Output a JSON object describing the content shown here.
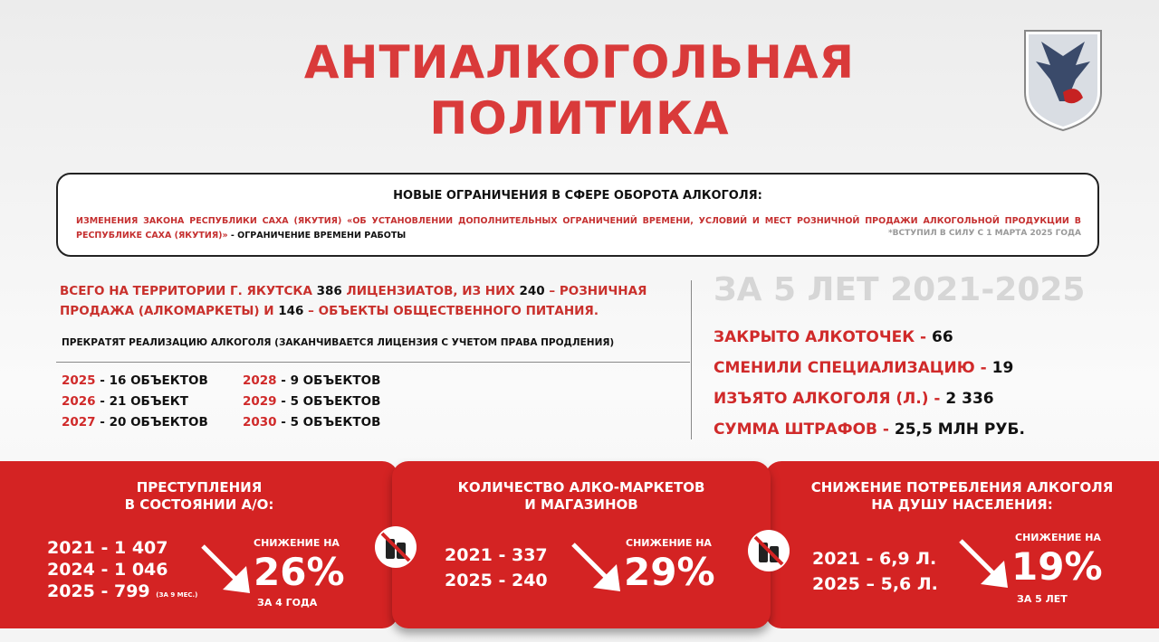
{
  "title": {
    "line1": "АНТИАЛКОГОЛЬНАЯ",
    "line2": "ПОЛИТИКА"
  },
  "crest": {
    "icon": "yakutsk-coat-of-arms"
  },
  "restrictions": {
    "heading": "НОВЫЕ ОГРАНИЧЕНИЯ В СФЕРЕ ОБОРОТА АЛКОГОЛЯ:",
    "law_text": "ИЗМЕНЕНИЯ ЗАКОНА РЕСПУБЛИКИ САХА (ЯКУТИЯ)  «ОБ УСТАНОВЛЕНИИ ДОПОЛНИТЕЛЬНЫХ ОГРАНИЧЕНИЙ ВРЕМЕНИ, УСЛОВИЙ И МЕСТ РОЗНИЧНОЙ ПРОДАЖИ АЛКОГОЛЬНОЙ ПРОДУКЦИИ В РЕСПУБЛИКЕ САХА (ЯКУТИЯ)»",
    "law_suffix": " - ОГРАНИЧЕНИЕ ВРЕМЕНИ РАБОТЫ",
    "note": "*ВСТУПИЛ В СИЛУ С 1 МАРТА 2025 ГОДА"
  },
  "licensees": {
    "t1": "ВСЕГО НА ТЕРРИТОРИИ Г. ЯКУТСКА ",
    "n1": "386",
    "t2": " ЛИЦЕНЗИАТОВ, ИЗ НИХ ",
    "n2": "240",
    "t3": " – РОЗНИЧНАЯ ПРОДАЖА (АЛКОМАРКЕТЫ) И ",
    "n3": "146",
    "t4": " – ОБЪЕКТЫ ОБЩЕСТВЕННОГО ПИТАНИЯ."
  },
  "stop_heading": "ПРЕКРАТЯТ РЕАЛИЗАЦИЮ АЛКОГОЛЯ (ЗАКАНЧИВАЕТСЯ ЛИЦЕНЗИЯ С УЧЕТОМ ПРАВА ПРОДЛЕНИЯ)",
  "schedule": [
    {
      "year": "2025",
      "value": "16 ОБЪЕКТОВ"
    },
    {
      "year": "2026",
      "value": "21 ОБЪЕКТ"
    },
    {
      "year": "2027",
      "value": "20 ОБЪЕКТОВ"
    },
    {
      "year": "2028",
      "value": "9 ОБЪЕКТОВ"
    },
    {
      "year": "2029",
      "value": "5 ОБЪЕКТОВ"
    },
    {
      "year": "2030",
      "value": "5 ОБЪЕКТОВ"
    }
  ],
  "period": "ЗА 5 ЛЕТ 2021-2025",
  "stats": [
    {
      "label": "ЗАКРЫТО АЛКОТОЧЕК",
      "value": "66"
    },
    {
      "label": "СМЕНИЛИ СПЕЦИАЛИЗАЦИЮ",
      "value": "19"
    },
    {
      "label": "ИЗЪЯТО АЛКОГОЛЯ (Л.)",
      "value": "2 336"
    },
    {
      "label": "СУММА ШТРАФОВ",
      "value": "25,5 МЛН РУБ."
    }
  ],
  "panels": [
    {
      "title1": "ПРЕСТУПЛЕНИЯ",
      "title2": "В СОСТОЯНИИ А/О:",
      "rows": [
        "2021 - 1 407",
        "2024 - 1 046",
        "2025 - 799"
      ],
      "row_note": "(ЗА 9 МЕС.)",
      "decrease_label": "СНИЖЕНИЕ НА",
      "percent": "26%",
      "period": "ЗА 4 ГОДА"
    },
    {
      "title1": "КОЛИЧЕСТВО АЛКО-МАРКЕТОВ",
      "title2": "И МАГАЗИНОВ",
      "rows": [
        "2021 - 337",
        "2025 - 240"
      ],
      "decrease_label": "СНИЖЕНИЕ НА",
      "percent": "29%"
    },
    {
      "title1": "СНИЖЕНИЕ ПОТРЕБЛЕНИЯ АЛКОГОЛЯ",
      "title2": "НА ДУШУ НАСЕЛЕНИЯ:",
      "rows": [
        "2021 - 6,9 Л.",
        "2025 – 5,6 Л."
      ],
      "decrease_label": "СНИЖЕНИЕ НА",
      "percent": "19%",
      "period": "ЗА 5 ЛЕТ"
    }
  ],
  "colors": {
    "accent": "#d42323",
    "title": "#d93a3a",
    "muted": "#d6d6d6"
  }
}
